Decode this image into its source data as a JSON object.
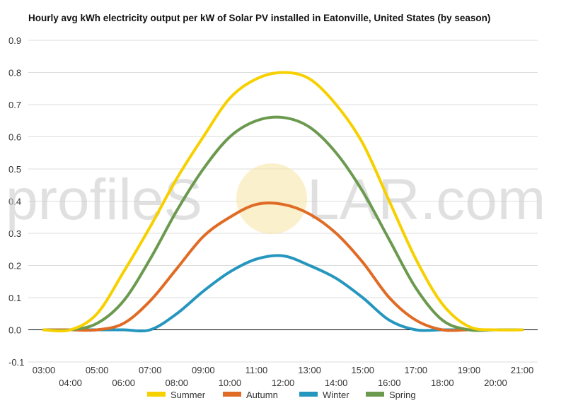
{
  "chart_data": {
    "type": "line",
    "title": "Hourly avg kWh electricity output per kW of Solar PV installed in Eatonville, United States (by season)",
    "xlabel": "",
    "ylabel": "",
    "x": [
      "03:00",
      "04:00",
      "05:00",
      "06:00",
      "07:00",
      "08:00",
      "09:00",
      "10:00",
      "11:00",
      "12:00",
      "13:00",
      "14:00",
      "15:00",
      "16:00",
      "17:00",
      "18:00",
      "19:00",
      "20:00",
      "21:00"
    ],
    "ylim": [
      -0.1,
      0.9
    ],
    "yticks": [
      "-0.1",
      "0.0",
      "0.1",
      "0.2",
      "0.3",
      "0.4",
      "0.5",
      "0.6",
      "0.7",
      "0.8",
      "0.9"
    ],
    "grid": true,
    "legend_position": "bottom",
    "series": [
      {
        "name": "Summer",
        "color": "#f7d000",
        "values": [
          0.0,
          0.0,
          0.05,
          0.18,
          0.32,
          0.47,
          0.6,
          0.72,
          0.78,
          0.8,
          0.78,
          0.7,
          0.58,
          0.4,
          0.22,
          0.08,
          0.01,
          0.0,
          0.0
        ]
      },
      {
        "name": "Autumn",
        "color": "#e06b24",
        "values": [
          0.0,
          0.0,
          0.0,
          0.02,
          0.09,
          0.19,
          0.29,
          0.35,
          0.39,
          0.39,
          0.36,
          0.3,
          0.21,
          0.1,
          0.03,
          0.0,
          0.0,
          0.0,
          0.0
        ]
      },
      {
        "name": "Winter",
        "color": "#2596be",
        "values": [
          0.0,
          0.0,
          0.0,
          0.0,
          0.0,
          0.05,
          0.12,
          0.18,
          0.22,
          0.23,
          0.2,
          0.16,
          0.1,
          0.03,
          0.0,
          0.0,
          0.0,
          0.0,
          0.0
        ]
      },
      {
        "name": "Spring",
        "color": "#6b9a4f",
        "values": [
          0.0,
          0.0,
          0.02,
          0.09,
          0.22,
          0.37,
          0.5,
          0.6,
          0.65,
          0.66,
          0.63,
          0.55,
          0.43,
          0.28,
          0.13,
          0.03,
          0.0,
          0.0,
          0.0
        ]
      }
    ]
  },
  "watermark": {
    "left": "profileS",
    "right": "LAR.com"
  }
}
